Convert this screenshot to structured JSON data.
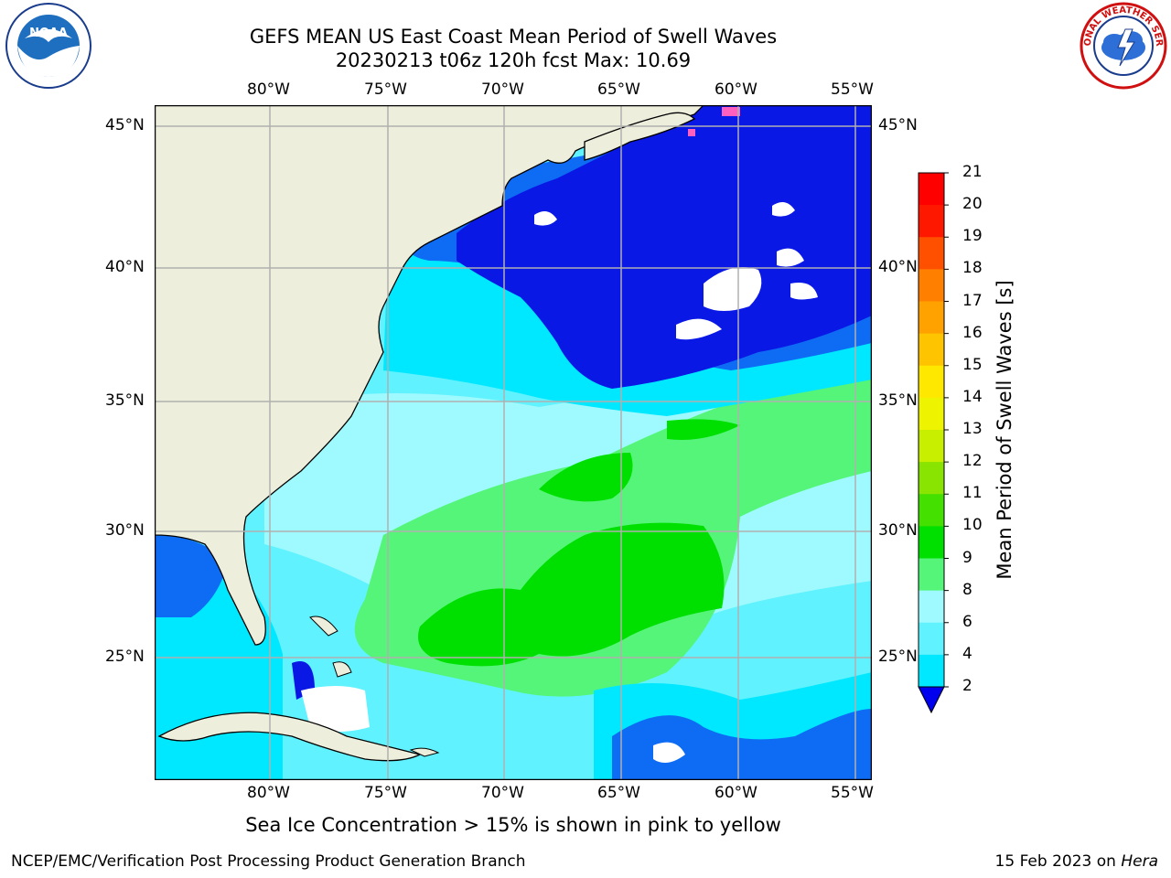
{
  "title": {
    "line1": "GEFS MEAN US East Coast Mean Period of Swell Waves",
    "line2": "20230213 t06z 120h fcst   Max: 10.69"
  },
  "axes": {
    "lon_labels": [
      "80°W",
      "75°W",
      "70°W",
      "65°W",
      "60°W",
      "55°W"
    ],
    "lat_labels": [
      "45°N",
      "40°N",
      "35°N",
      "30°N",
      "25°N"
    ]
  },
  "colorbar": {
    "title": "Mean Period of Swell Waves [s]",
    "tick_labels": [
      "2",
      "4",
      "6",
      "8",
      "9",
      "10",
      "11",
      "12",
      "13",
      "14",
      "15",
      "16",
      "17",
      "18",
      "19",
      "20",
      "21"
    ],
    "colors": [
      "#0a5cf0",
      "#00b4ff",
      "#00e8ff",
      "#60f2ff",
      "#9ffaff",
      "#55f57a",
      "#00e000",
      "#44e000",
      "#88e400",
      "#c8ee00",
      "#eef300",
      "#ffe800",
      "#ffc400",
      "#ffa200",
      "#ff8000",
      "#ff5000",
      "#ff1800",
      "#ff0000"
    ],
    "under_color": "#0000ee"
  },
  "map_colors": {
    "land": "#eeeedc",
    "grid": "#b0b0b0",
    "deep_blue": "#0a18e6",
    "mid_blue": "#0e6cf4",
    "cyan": "#00e8ff",
    "light_cyan": "#60f2ff",
    "pale_cyan": "#9ffaff",
    "light_green": "#55f57a",
    "green": "#00e000"
  },
  "logos": {
    "left": "noaa-logo",
    "right": "nws-logo",
    "left_text": "NOAA",
    "right_text": "NATIONAL WEATHER SERVICE"
  },
  "note": "Sea Ice Concentration > 15% is shown in pink to yellow",
  "footer": {
    "left": "NCEP/EMC/Verification Post Processing Product Generation Branch",
    "right_prefix": "15 Feb 2023 on ",
    "right_host": "Hera"
  }
}
